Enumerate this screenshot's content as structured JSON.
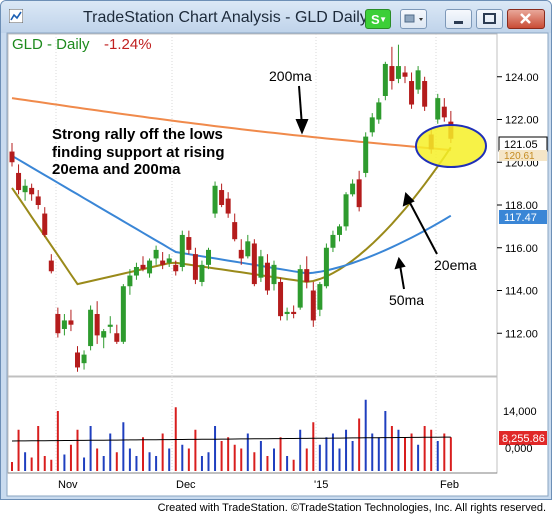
{
  "window": {
    "title": "TradeStation Chart Analysis - GLD Daily [A",
    "s_button": "S"
  },
  "chart": {
    "symbol_label": "GLD - Daily",
    "change_label": "-1.24%",
    "annotation_main": [
      "Strong rally off  the lows",
      "finding support at rising",
      "20ema and 200ma"
    ],
    "label_200ma": "200ma",
    "label_20ema": "20ema",
    "label_50ma": "50ma",
    "price_badges": [
      {
        "text": "121.05",
        "color": "#000000",
        "bg": "#ffffff"
      },
      {
        "text": "120.61",
        "color": "#d9a43a",
        "bg": "#ffffff"
      },
      {
        "text": "117.47",
        "color": "#ffffff",
        "bg": "#3a86d6"
      }
    ],
    "volume_badge": {
      "text": "8,255.86",
      "color": "#ffffff",
      "bg": "#e02828"
    },
    "volume_tick": "14,000",
    "volume_tick2": "0,000",
    "colors": {
      "up": "#2e9b2e",
      "down": "#b41c1c",
      "ma200": "#f08a4b",
      "ema20": "#9a8a1a",
      "ma50": "#3a86d6",
      "vol_up": "#1f3fbf",
      "vol_down": "#d81e1e",
      "highlight": "#f6f027"
    }
  },
  "chart_data": {
    "type": "candlestick",
    "title": "GLD - Daily",
    "y_ticks": [
      112,
      114,
      116,
      118,
      120,
      122,
      124
    ],
    "ylim": [
      110,
      126
    ],
    "x_labels": [
      "Nov",
      "Dec",
      "'15",
      "Feb"
    ],
    "series": [
      {
        "name": "200ma"
      },
      {
        "name": "20ema"
      },
      {
        "name": "50ma"
      }
    ],
    "last_values": {
      "price": 121.05,
      "ema20": 120.61,
      "ma50": 117.47
    },
    "volume_last": 8255.86
  },
  "footer": {
    "text": "Created with TradeStation. ©TradeStation Technologies, Inc. All rights reserved."
  }
}
